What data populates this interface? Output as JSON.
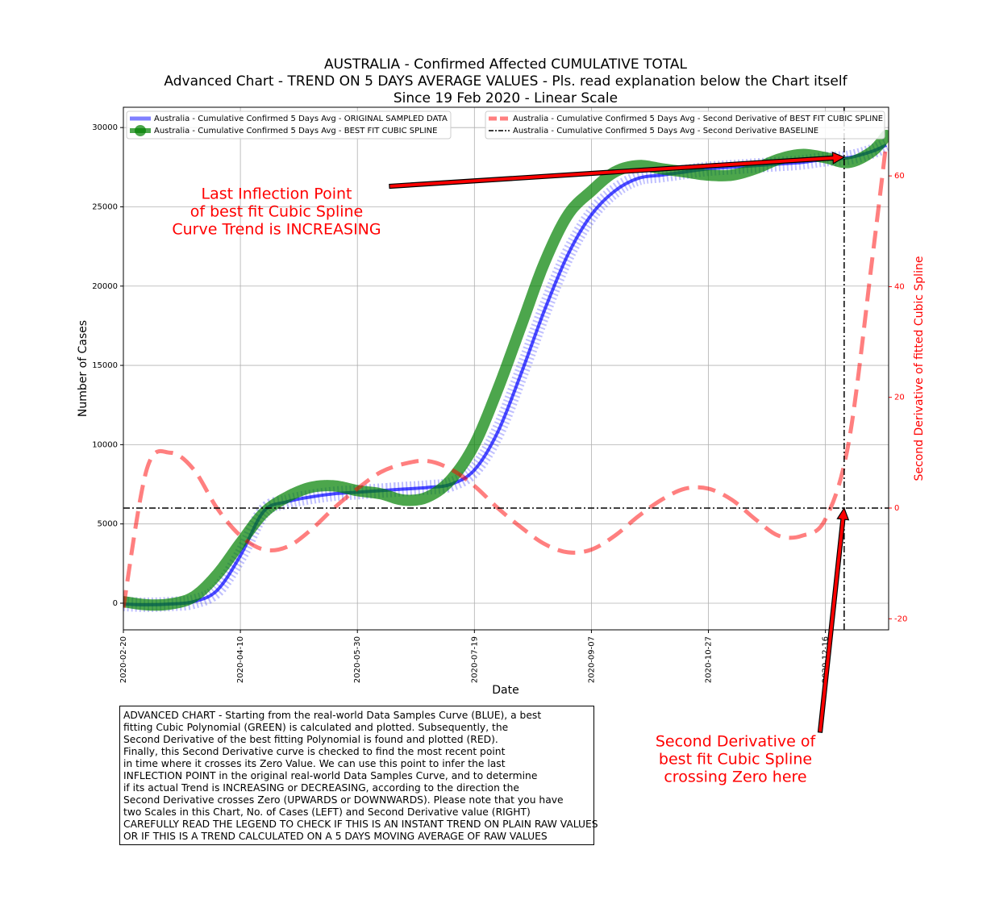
{
  "chart_data": {
    "type": "line",
    "title": [
      "AUSTRALIA - Confirmed Affected CUMULATIVE TOTAL",
      "Advanced Chart - TREND ON 5 DAYS AVERAGE VALUES - Pls. read explanation below the Chart itself",
      "Since 19 Feb 2020 - Linear Scale"
    ],
    "x_label": "Date",
    "y_label": "Number of Cases",
    "y2_label": "Second Derivative of fitted Cubic Spline",
    "xlim": [
      "2020-02-20",
      "2021-01-12"
    ],
    "xticks": [
      "2020-02-20",
      "2020-04-10",
      "2020-05-30",
      "2020-07-19",
      "2020-09-07",
      "2020-10-27",
      "2020-12-16"
    ],
    "ylim": [
      -1680,
      31280
    ],
    "yticks": [
      0,
      5000,
      10000,
      15000,
      20000,
      25000,
      30000
    ],
    "y2lim": [
      -22,
      72.4
    ],
    "y2ticks": [
      -20,
      0,
      20,
      40,
      60
    ],
    "y2_color": "#ff0000",
    "grid": true,
    "x": [
      "2020-02-20",
      "2020-03-01",
      "2020-03-11",
      "2020-03-21",
      "2020-03-31",
      "2020-04-10",
      "2020-04-20",
      "2020-04-30",
      "2020-05-10",
      "2020-05-20",
      "2020-05-30",
      "2020-06-09",
      "2020-06-19",
      "2020-06-29",
      "2020-07-09",
      "2020-07-19",
      "2020-07-29",
      "2020-08-08",
      "2020-08-18",
      "2020-08-28",
      "2020-09-07",
      "2020-09-17",
      "2020-09-27",
      "2020-10-07",
      "2020-10-17",
      "2020-10-27",
      "2020-11-06",
      "2020-11-16",
      "2020-11-26",
      "2020-12-06",
      "2020-12-16",
      "2020-12-26",
      "2021-01-05",
      "2021-01-11"
    ],
    "series": [
      {
        "name": "Australia - Cumulative Confirmed 5 Days Avg - ORIGINAL SAMPLED DATA",
        "color": "#0000ff",
        "style": "x-markers",
        "values": [
          -50,
          -100,
          -50,
          100,
          800,
          3000,
          5800,
          6400,
          6700,
          6900,
          7000,
          7100,
          7200,
          7300,
          7500,
          8400,
          10800,
          14500,
          18500,
          22000,
          24500,
          26000,
          26800,
          27000,
          27200,
          27400,
          27500,
          27600,
          27700,
          27800,
          28000,
          28100,
          28500,
          28900
        ]
      },
      {
        "name": "Australia - Cumulative Confirmed 5 Days Avg - BEST FIT CUBIC SPLINE",
        "color": "#008000",
        "style": "circle-markers",
        "values": [
          100,
          -100,
          -50,
          400,
          1800,
          3800,
          5700,
          6700,
          7300,
          7400,
          7100,
          6900,
          6500,
          6700,
          7800,
          10000,
          13500,
          17500,
          21500,
          24500,
          26000,
          27200,
          27600,
          27400,
          27200,
          27000,
          27000,
          27400,
          28000,
          28300,
          28100,
          27800,
          28500,
          29500
        ]
      },
      {
        "name": "Australia - Cumulative Confirmed 5 Days Avg - Second Derivative of BEST FIT CUBIC SPLINE",
        "color": "#ff0000",
        "style": "dashed",
        "axis": "y2",
        "values": [
          -18,
          7,
          10,
          7,
          0,
          -5,
          -7.5,
          -7,
          -4,
          0,
          3.5,
          6.5,
          8,
          8.5,
          7,
          4,
          0,
          -3.5,
          -6.5,
          -8,
          -7.5,
          -5,
          -1.5,
          1.5,
          3.5,
          3.5,
          1.5,
          -2,
          -5,
          -5,
          -2,
          12,
          45,
          66
        ]
      },
      {
        "name": "Australia - Cumulative Confirmed 5 Days Avg - Second Derivative BASELINE",
        "color": "#000000",
        "style": "dashdot",
        "axis": "y2",
        "hline": 0
      }
    ],
    "vline": "2020-12-24",
    "annotations": [
      {
        "lines": [
          "Last Inflection Point",
          "of best fit Cubic Spline",
          "Curve Trend is INCREASING"
        ]
      },
      {
        "lines": [
          "Second Derivative of",
          "best fit Cubic Spline",
          "crossing Zero here"
        ]
      }
    ],
    "note": [
      "ADVANCED CHART - Starting from the real-world Data Samples Curve (BLUE), a best",
      "fitting Cubic Polynomial (GREEN) is calculated and plotted. Subsequently, the",
      "Second Derivative of the best fitting Polynomial is found and plotted (RED).",
      "Finally, this Second Derivative curve is checked to find the most recent point",
      "in time where it crosses its Zero Value. We can use this point to infer the last",
      "INFLECTION POINT in the original real-world Data Samples Curve, and to determine",
      "if its actual Trend is INCREASING or DECREASING, according to the direction the",
      "Second Derivative crosses Zero (UPWARDS or DOWNWARDS). Please note that you have",
      "two Scales in this Chart, No. of Cases (LEFT) and Second Derivative value (RIGHT)",
      "CAREFULLY READ THE LEGEND TO CHECK IF THIS IS AN INSTANT TREND ON PLAIN RAW VALUES",
      "OR IF THIS IS A TREND CALCULATED ON A 5 DAYS MOVING AVERAGE OF RAW VALUES"
    ]
  }
}
